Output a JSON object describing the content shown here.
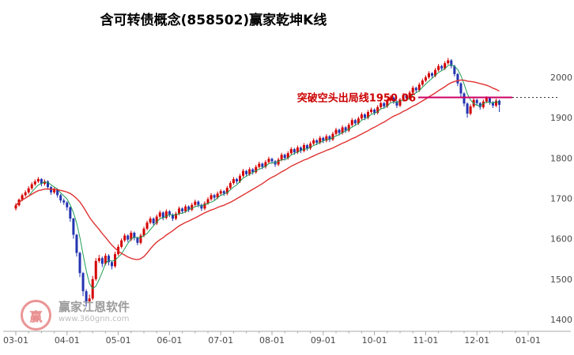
{
  "title": "含可转债概念(858502)赢家乾坤K线",
  "watermark": {
    "logo_char": "赢",
    "brand": "赢家江恩软件",
    "url": "www.360gnn.com"
  },
  "chart_data": {
    "type": "candlestick",
    "title": "含可转债概念(858502)赢家乾坤K线",
    "x_labels": [
      "03-01",
      "04-01",
      "05-01",
      "06-01",
      "07-01",
      "08-01",
      "09-01",
      "10-01",
      "11-01",
      "12-01",
      "01-01"
    ],
    "y_ticks": [
      1400,
      1500,
      1600,
      1700,
      1800,
      1900,
      2000
    ],
    "ylim": [
      1400,
      2060
    ],
    "grid": "off",
    "legend": "none",
    "candles_per_month": 16,
    "ma_periods": {
      "short": 5,
      "long": 20
    },
    "annotation": {
      "label": "突破空头出局线1950.06",
      "value": 1950.06
    },
    "colors": {
      "up": "#d40000",
      "down": "#2434b0",
      "ma_short": "#1f9d55",
      "ma_long": "#e03131",
      "annotation_line": "#cc0066",
      "annotation_text": "#cc0000"
    },
    "series": [
      {
        "name": "K线",
        "ohlc": [
          [
            1675,
            1688,
            1670,
            1683
          ],
          [
            1683,
            1700,
            1680,
            1697
          ],
          [
            1697,
            1712,
            1693,
            1708
          ],
          [
            1708,
            1720,
            1704,
            1715
          ],
          [
            1715,
            1730,
            1711,
            1725
          ],
          [
            1725,
            1740,
            1721,
            1735
          ],
          [
            1735,
            1747,
            1731,
            1742
          ],
          [
            1742,
            1753,
            1738,
            1748
          ],
          [
            1748,
            1750,
            1730,
            1736
          ],
          [
            1736,
            1747,
            1732,
            1742
          ],
          [
            1742,
            1745,
            1722,
            1728
          ],
          [
            1728,
            1731,
            1709,
            1715
          ],
          [
            1715,
            1727,
            1711,
            1722
          ],
          [
            1722,
            1725,
            1702,
            1708
          ],
          [
            1708,
            1711,
            1689,
            1695
          ],
          [
            1695,
            1700,
            1684,
            1690
          ],
          [
            1690,
            1693,
            1670,
            1678
          ],
          [
            1678,
            1680,
            1642,
            1650
          ],
          [
            1650,
            1652,
            1600,
            1610
          ],
          [
            1610,
            1612,
            1556,
            1565
          ],
          [
            1565,
            1568,
            1505,
            1515
          ],
          [
            1515,
            1518,
            1458,
            1470
          ],
          [
            1470,
            1475,
            1432,
            1445
          ],
          [
            1445,
            1462,
            1438,
            1452
          ],
          [
            1452,
            1508,
            1448,
            1500
          ],
          [
            1500,
            1552,
            1496,
            1545
          ],
          [
            1545,
            1560,
            1540,
            1552
          ],
          [
            1552,
            1556,
            1530,
            1538
          ],
          [
            1538,
            1564,
            1534,
            1558
          ],
          [
            1558,
            1562,
            1534,
            1542
          ],
          [
            1542,
            1546,
            1524,
            1532
          ],
          [
            1532,
            1568,
            1528,
            1562
          ],
          [
            1562,
            1586,
            1558,
            1580
          ],
          [
            1580,
            1601,
            1576,
            1596
          ],
          [
            1596,
            1613,
            1592,
            1608
          ],
          [
            1608,
            1611,
            1592,
            1598
          ],
          [
            1598,
            1620,
            1594,
            1615
          ],
          [
            1615,
            1618,
            1596,
            1602
          ],
          [
            1602,
            1605,
            1584,
            1590
          ],
          [
            1590,
            1613,
            1586,
            1608
          ],
          [
            1608,
            1630,
            1604,
            1625
          ],
          [
            1625,
            1645,
            1621,
            1640
          ],
          [
            1640,
            1655,
            1636,
            1650
          ],
          [
            1650,
            1653,
            1632,
            1638
          ],
          [
            1638,
            1660,
            1634,
            1655
          ],
          [
            1655,
            1670,
            1651,
            1665
          ],
          [
            1665,
            1668,
            1646,
            1652
          ],
          [
            1652,
            1673,
            1648,
            1668
          ],
          [
            1668,
            1671,
            1654,
            1660
          ],
          [
            1660,
            1663,
            1644,
            1650
          ],
          [
            1650,
            1667,
            1646,
            1662
          ],
          [
            1662,
            1680,
            1658,
            1675
          ],
          [
            1675,
            1678,
            1662,
            1668
          ],
          [
            1668,
            1685,
            1664,
            1680
          ],
          [
            1680,
            1683,
            1666,
            1672
          ],
          [
            1672,
            1689,
            1668,
            1684
          ],
          [
            1684,
            1697,
            1680,
            1692
          ],
          [
            1692,
            1695,
            1678,
            1684
          ],
          [
            1684,
            1687,
            1669,
            1675
          ],
          [
            1675,
            1693,
            1671,
            1688
          ],
          [
            1688,
            1703,
            1684,
            1698
          ],
          [
            1698,
            1713,
            1694,
            1708
          ],
          [
            1708,
            1711,
            1696,
            1702
          ],
          [
            1702,
            1717,
            1698,
            1712
          ],
          [
            1712,
            1723,
            1708,
            1718
          ],
          [
            1718,
            1721,
            1706,
            1712
          ],
          [
            1712,
            1731,
            1708,
            1726
          ],
          [
            1726,
            1743,
            1722,
            1738
          ],
          [
            1738,
            1753,
            1734,
            1748
          ],
          [
            1748,
            1751,
            1736,
            1742
          ],
          [
            1742,
            1761,
            1738,
            1756
          ],
          [
            1756,
            1773,
            1752,
            1768
          ],
          [
            1768,
            1771,
            1754,
            1760
          ],
          [
            1760,
            1777,
            1756,
            1772
          ],
          [
            1772,
            1775,
            1759,
            1765
          ],
          [
            1765,
            1783,
            1761,
            1778
          ],
          [
            1778,
            1791,
            1774,
            1786
          ],
          [
            1786,
            1789,
            1772,
            1778
          ],
          [
            1778,
            1795,
            1774,
            1790
          ],
          [
            1790,
            1803,
            1786,
            1798
          ],
          [
            1798,
            1801,
            1786,
            1792
          ],
          [
            1792,
            1795,
            1778,
            1784
          ],
          [
            1784,
            1801,
            1780,
            1796
          ],
          [
            1796,
            1813,
            1792,
            1808
          ],
          [
            1808,
            1811,
            1794,
            1800
          ],
          [
            1800,
            1817,
            1796,
            1812
          ],
          [
            1812,
            1827,
            1808,
            1822
          ],
          [
            1822,
            1825,
            1808,
            1814
          ],
          [
            1814,
            1831,
            1810,
            1826
          ],
          [
            1826,
            1829,
            1812,
            1818
          ],
          [
            1818,
            1837,
            1814,
            1832
          ],
          [
            1832,
            1835,
            1818,
            1824
          ],
          [
            1824,
            1841,
            1820,
            1836
          ],
          [
            1836,
            1849,
            1832,
            1844
          ],
          [
            1844,
            1847,
            1832,
            1838
          ],
          [
            1838,
            1855,
            1834,
            1850
          ],
          [
            1850,
            1853,
            1837,
            1843
          ],
          [
            1843,
            1859,
            1839,
            1854
          ],
          [
            1854,
            1857,
            1840,
            1846
          ],
          [
            1846,
            1865,
            1842,
            1860
          ],
          [
            1860,
            1875,
            1856,
            1870
          ],
          [
            1870,
            1873,
            1856,
            1862
          ],
          [
            1862,
            1881,
            1858,
            1876
          ],
          [
            1876,
            1879,
            1862,
            1868
          ],
          [
            1868,
            1887,
            1864,
            1882
          ],
          [
            1882,
            1899,
            1878,
            1894
          ],
          [
            1894,
            1897,
            1880,
            1886
          ],
          [
            1886,
            1903,
            1882,
            1898
          ],
          [
            1898,
            1913,
            1894,
            1908
          ],
          [
            1908,
            1911,
            1894,
            1900
          ],
          [
            1900,
            1919,
            1896,
            1914
          ],
          [
            1914,
            1925,
            1910,
            1920
          ],
          [
            1920,
            1923,
            1906,
            1912
          ],
          [
            1912,
            1931,
            1908,
            1926
          ],
          [
            1926,
            1941,
            1922,
            1936
          ],
          [
            1936,
            1939,
            1922,
            1928
          ],
          [
            1928,
            1947,
            1924,
            1942
          ],
          [
            1942,
            1955,
            1938,
            1950
          ],
          [
            1950,
            1953,
            1934,
            1940
          ],
          [
            1940,
            1943,
            1924,
            1930
          ],
          [
            1930,
            1949,
            1926,
            1944
          ],
          [
            1944,
            1961,
            1940,
            1956
          ],
          [
            1956,
            1959,
            1942,
            1948
          ],
          [
            1948,
            1967,
            1944,
            1962
          ],
          [
            1962,
            1979,
            1958,
            1974
          ],
          [
            1974,
            1977,
            1962,
            1968
          ],
          [
            1968,
            1987,
            1964,
            1982
          ],
          [
            1982,
            1997,
            1978,
            1992
          ],
          [
            1992,
            2005,
            1988,
            2000
          ],
          [
            2000,
            2015,
            1996,
            2010
          ],
          [
            2010,
            2013,
            1998,
            2004
          ],
          [
            2004,
            2023,
            2000,
            2018
          ],
          [
            2018,
            2033,
            2014,
            2028
          ],
          [
            2028,
            2031,
            2016,
            2022
          ],
          [
            2022,
            2040,
            2018,
            2035
          ],
          [
            2035,
            2048,
            2031,
            2042
          ],
          [
            2042,
            2045,
            2022,
            2028
          ],
          [
            2028,
            2031,
            2002,
            2008
          ],
          [
            2008,
            2011,
            1978,
            1985
          ],
          [
            1985,
            1988,
            1952,
            1960
          ],
          [
            1960,
            1963,
            1928,
            1935
          ],
          [
            1935,
            1938,
            1900,
            1910
          ],
          [
            1910,
            1933,
            1906,
            1928
          ],
          [
            1928,
            1949,
            1924,
            1944
          ],
          [
            1944,
            1947,
            1930,
            1936
          ],
          [
            1936,
            1939,
            1920,
            1926
          ],
          [
            1926,
            1945,
            1922,
            1940
          ],
          [
            1940,
            1953,
            1936,
            1948
          ],
          [
            1948,
            1951,
            1932,
            1938
          ],
          [
            1938,
            1941,
            1924,
            1930
          ],
          [
            1930,
            1947,
            1926,
            1942
          ],
          [
            1942,
            1945,
            1914,
            1932
          ]
        ]
      }
    ]
  }
}
